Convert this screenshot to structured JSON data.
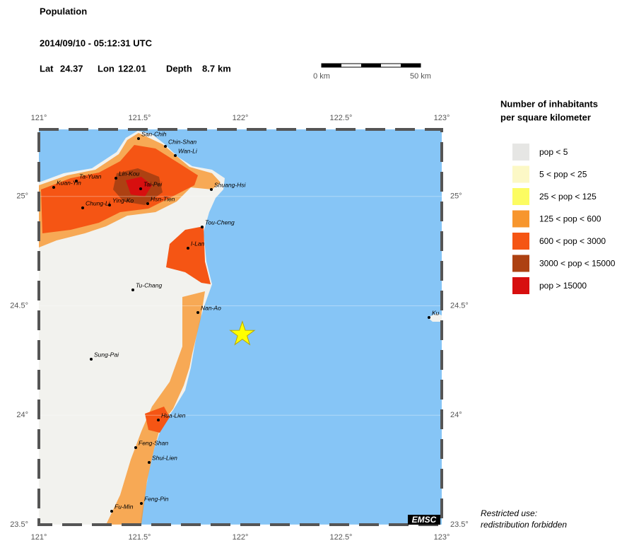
{
  "header": {
    "title": "Population",
    "datetime": "2014/09/10 - 05:12:31 UTC",
    "epicenter": {
      "lat_label": "Lat",
      "lat": 24.37,
      "lon_label": "Lon",
      "lon": 122.01,
      "depth_label": "Depth",
      "depth": 8.7,
      "depth_unit": "km"
    }
  },
  "scale_bar": {
    "start": "0 km",
    "end": "50 km"
  },
  "map": {
    "xlim": [
      121,
      123
    ],
    "ylim": [
      23.5,
      25.306
    ],
    "xticks": [
      {
        "value": 121,
        "label": "121°"
      },
      {
        "value": 121.5,
        "label": "121.5°"
      },
      {
        "value": 122,
        "label": "122°"
      },
      {
        "value": 122.5,
        "label": "122.5°"
      },
      {
        "value": 123,
        "label": "123°"
      }
    ],
    "yticks": [
      {
        "value": 23.5,
        "label": "23.5°"
      },
      {
        "value": 24,
        "label": "24°"
      },
      {
        "value": 24.5,
        "label": "24.5°"
      },
      {
        "value": 25,
        "label": "25°"
      }
    ],
    "cities": [
      "San-Chih",
      "Chin-Shan",
      "Wan-Li",
      "Ta-Yuan",
      "Lin-Kou",
      "Kuan-Yin",
      "Tai-Pei",
      "Shuang-Hsi",
      "Chung-Li",
      "Ying-Ko",
      "Hsn-Tien",
      "Tou-Cheng",
      "I-Lan",
      "Tu-Chang",
      "Nan-Ao",
      "Sung-Pai",
      "Hua-Lien",
      "Feng-Shan",
      "Shui-Lien",
      "Feng-Pin",
      "Fu-Min",
      "Ku"
    ],
    "credit": "EMSC"
  },
  "legend": {
    "title": [
      "Number of inhabitants",
      "per square kilometer"
    ],
    "items": [
      {
        "label": "pop < 5",
        "color": "#e6e6e4"
      },
      {
        "label": "5 < pop < 25",
        "color": "#fcf8c6"
      },
      {
        "label": "25 < pop < 125",
        "color": "#fcfc62"
      },
      {
        "label": "125 < pop < 600",
        "color": "#f7962e"
      },
      {
        "label": "600 < pop < 3000",
        "color": "#f55514"
      },
      {
        "label": "3000 < pop < 15000",
        "color": "#ad4112"
      },
      {
        "label": "pop > 15000",
        "color": "#d70f0f"
      }
    ]
  },
  "notice": [
    "Restricted use:",
    "redistribution forbidden"
  ]
}
